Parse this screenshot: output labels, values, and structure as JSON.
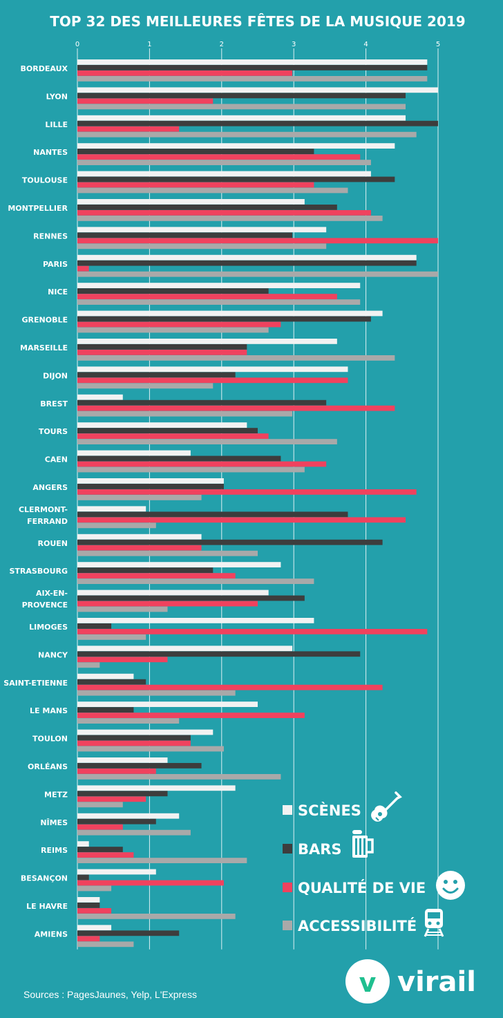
{
  "colors": {
    "background": "#23a0ab",
    "scenes": "#f2f2f2",
    "bars": "#3d3d3d",
    "qualite": "#f0425e",
    "accessibilite": "#a9a9a9"
  },
  "chart_data": {
    "type": "bar",
    "orientation": "horizontal",
    "title": "TOP 32 DES MEILLEURES FÊTES DE LA MUSIQUE 2019",
    "xlim": [
      0,
      5
    ],
    "xticks": [
      "0",
      "1",
      "2",
      "3",
      "4",
      "5"
    ],
    "grid": true,
    "legend_position": "bottom-right",
    "categories": [
      [
        "BORDEAUX"
      ],
      [
        "LYON"
      ],
      [
        "LILLE"
      ],
      [
        "NANTES"
      ],
      [
        "TOULOUSE"
      ],
      [
        "MONTPELLIER"
      ],
      [
        "RENNES"
      ],
      [
        "PARIS"
      ],
      [
        "NICE"
      ],
      [
        "GRENOBLE"
      ],
      [
        "MARSEILLE"
      ],
      [
        "DIJON"
      ],
      [
        "BREST"
      ],
      [
        "TOURS"
      ],
      [
        "CAEN"
      ],
      [
        "ANGERS"
      ],
      [
        "CLERMONT-",
        "FERRAND"
      ],
      [
        "ROUEN"
      ],
      [
        "STRASBOURG"
      ],
      [
        "AIX-EN-",
        "PROVENCE"
      ],
      [
        "LIMOGES"
      ],
      [
        "NANCY"
      ],
      [
        "SAINT-ETIENNE"
      ],
      [
        "LE MANS"
      ],
      [
        "TOULON"
      ],
      [
        "ORLÉANS"
      ],
      [
        "METZ"
      ],
      [
        "NÎMES"
      ],
      [
        "REIMS"
      ],
      [
        "BESANÇON"
      ],
      [
        "LE HAVRE"
      ],
      [
        "AMIENS"
      ]
    ],
    "series": [
      {
        "name": "SCÈNES",
        "values": [
          4.85,
          5.0,
          4.55,
          4.4,
          4.07,
          3.15,
          3.45,
          4.7,
          3.92,
          4.23,
          3.6,
          3.75,
          0.63,
          2.35,
          1.57,
          2.03,
          0.95,
          1.72,
          2.82,
          2.65,
          3.28,
          2.98,
          0.78,
          2.5,
          1.88,
          1.25,
          2.19,
          1.41,
          0.16,
          1.09,
          0.31,
          0.47
        ]
      },
      {
        "name": "BARS",
        "values": [
          4.85,
          4.55,
          5.0,
          3.28,
          4.4,
          3.6,
          2.98,
          4.7,
          2.65,
          4.07,
          2.35,
          2.19,
          3.45,
          2.5,
          2.82,
          2.03,
          3.75,
          4.23,
          1.88,
          3.15,
          0.47,
          3.92,
          0.95,
          0.78,
          1.57,
          1.72,
          1.25,
          1.09,
          0.63,
          0.16,
          0.31,
          1.41
        ]
      },
      {
        "name": "QUALITÉ DE VIE",
        "values": [
          2.98,
          1.88,
          1.41,
          3.92,
          3.28,
          4.07,
          5.0,
          0.16,
          3.6,
          2.82,
          2.35,
          3.75,
          4.4,
          2.65,
          3.45,
          4.7,
          4.55,
          1.72,
          2.19,
          2.5,
          4.85,
          1.25,
          4.23,
          3.15,
          1.57,
          1.09,
          0.95,
          0.63,
          0.78,
          2.03,
          0.47,
          0.31
        ]
      },
      {
        "name": "ACCESSIBILITÉ",
        "values": [
          4.85,
          4.55,
          4.7,
          4.07,
          3.75,
          4.23,
          3.45,
          5.0,
          3.92,
          2.65,
          4.4,
          1.88,
          2.98,
          3.6,
          3.15,
          1.72,
          1.09,
          2.5,
          3.28,
          1.25,
          0.95,
          0.31,
          2.19,
          1.41,
          2.03,
          2.82,
          0.63,
          1.57,
          2.35,
          0.47,
          2.19,
          0.78
        ]
      }
    ]
  },
  "legend": {
    "items": [
      {
        "label": "SCÈNES",
        "icon": "guitar-icon",
        "color": "#f2f2f2"
      },
      {
        "label": "BARS",
        "icon": "beer-mug-icon",
        "color": "#3d3d3d"
      },
      {
        "label": "QUALITÉ DE VIE",
        "icon": "smiley-icon",
        "color": "#f0425e"
      },
      {
        "label": "ACCESSIBILITÉ",
        "icon": "train-icon",
        "color": "#a9a9a9"
      }
    ]
  },
  "footer": {
    "sources": "Sources : PagesJaunes, Yelp, L'Express",
    "logo_text": "virail",
    "logo_letter": "v"
  }
}
